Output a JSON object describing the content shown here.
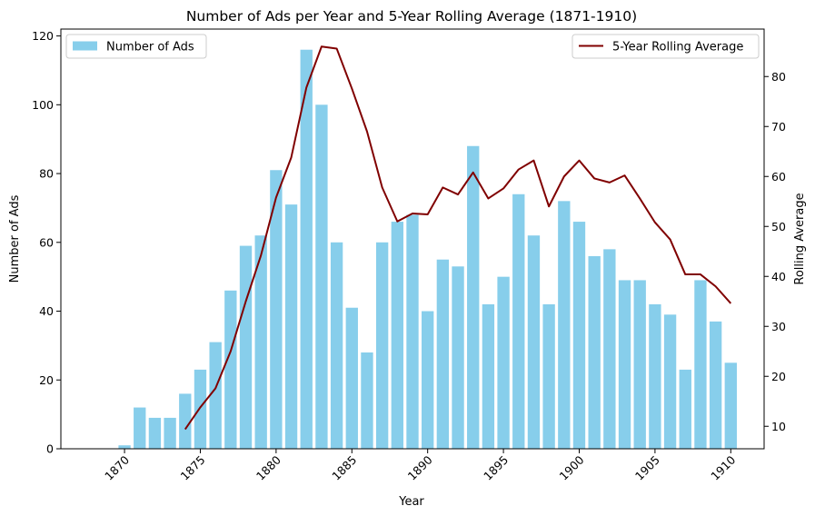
{
  "chart_data": {
    "type": "bar",
    "title": "Number of Ads per Year and 5-Year Rolling Average (1871-1910)",
    "xlabel": "Year",
    "ylabel": "Number of Ads",
    "y2label": "Rolling Average",
    "xlim": [
      1865.8,
      1912.2
    ],
    "ylim": [
      0,
      122
    ],
    "y2lim": [
      5.5,
      89.5
    ],
    "x_ticks": [
      1870,
      1875,
      1880,
      1885,
      1890,
      1895,
      1900,
      1905,
      1910
    ],
    "y_ticks": [
      0,
      20,
      40,
      60,
      80,
      100,
      120
    ],
    "y2_ticks": [
      10,
      20,
      30,
      40,
      50,
      60,
      70,
      80
    ],
    "x_tick_rotation": 45,
    "grid": false,
    "series": [
      {
        "name": "Number of Ads",
        "type": "bar",
        "axis": "left",
        "color": "#87ceeb",
        "x": [
          1870,
          1871,
          1872,
          1873,
          1874,
          1875,
          1876,
          1877,
          1878,
          1879,
          1880,
          1881,
          1882,
          1883,
          1884,
          1885,
          1886,
          1887,
          1888,
          1889,
          1890,
          1891,
          1892,
          1893,
          1894,
          1895,
          1896,
          1897,
          1898,
          1899,
          1900,
          1901,
          1902,
          1903,
          1904,
          1905,
          1906,
          1907,
          1908,
          1909,
          1910
        ],
        "values": [
          1,
          12,
          9,
          9,
          16,
          23,
          31,
          46,
          59,
          62,
          81,
          71,
          116,
          100,
          60,
          41,
          28,
          60,
          66,
          68,
          40,
          55,
          53,
          88,
          42,
          50,
          74,
          62,
          42,
          72,
          66,
          56,
          58,
          49,
          49,
          42,
          39,
          23,
          49,
          37,
          25
        ]
      },
      {
        "name": "5-Year Rolling Average",
        "type": "line",
        "axis": "right",
        "color": "#800000",
        "x": [
          1874,
          1875,
          1876,
          1877,
          1878,
          1879,
          1880,
          1881,
          1882,
          1883,
          1884,
          1885,
          1886,
          1887,
          1888,
          1889,
          1890,
          1891,
          1892,
          1893,
          1894,
          1895,
          1896,
          1897,
          1898,
          1899,
          1900,
          1901,
          1902,
          1903,
          1904,
          1905,
          1906,
          1907,
          1908,
          1909,
          1910
        ],
        "values": [
          9.4,
          13.8,
          17.6,
          25.0,
          35.0,
          44.2,
          55.8,
          63.8,
          77.8,
          86.0,
          85.6,
          77.6,
          69.0,
          57.8,
          51.0,
          52.6,
          52.4,
          57.8,
          56.4,
          60.8,
          55.6,
          57.6,
          61.4,
          63.2,
          54.0,
          60.0,
          63.2,
          59.6,
          58.8,
          60.2,
          55.6,
          50.8,
          47.4,
          40.4,
          40.4,
          38.0,
          34.6
        ]
      }
    ],
    "legend": [
      {
        "label": "Number of Ads",
        "placement": "upper-left"
      },
      {
        "label": "5-Year Rolling Average",
        "placement": "upper-right"
      }
    ]
  }
}
